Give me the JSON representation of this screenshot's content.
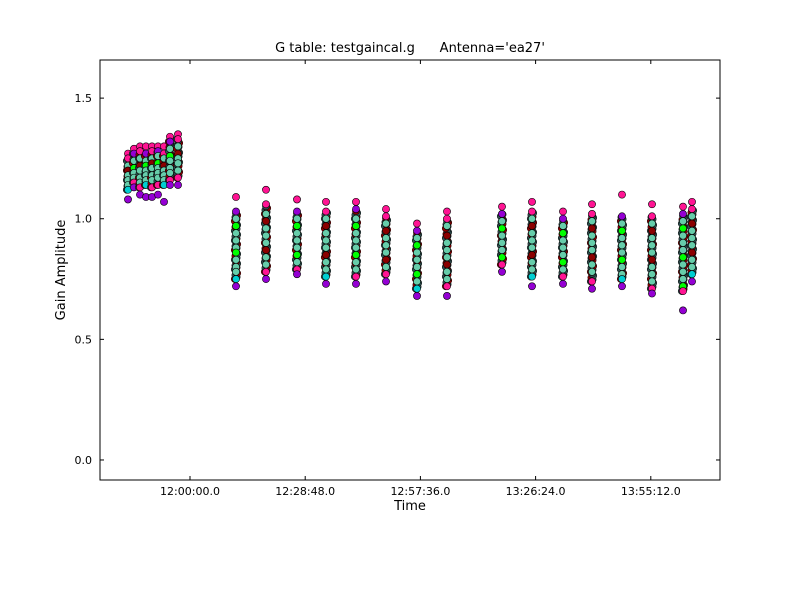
{
  "chart_data": {
    "type": "scatter",
    "title": "G table: testgaincal.g      Antenna='ea27'",
    "xlabel": "Time",
    "ylabel": "Gain Amplitude",
    "xlim": [
      "11:37:30",
      "14:12:30"
    ],
    "ylim": [
      -0.083,
      1.658
    ],
    "xticks": [
      "12:00:00.0",
      "12:28:48.0",
      "12:57:36.0",
      "13:26:24.0",
      "13:55:12.0"
    ],
    "xtick_values": [
      "12:00:00",
      "12:28:48",
      "12:57:36",
      "13:26:24",
      "13:55:12"
    ],
    "yticks": [
      "0.0",
      "0.5",
      "1.0",
      "1.5"
    ],
    "ytick_values": [
      0.0,
      0.5,
      1.0,
      1.5
    ],
    "grid": false,
    "palette": [
      "#66cdaa",
      "#2f4f4f",
      "#8b0000",
      "#ff1493",
      "#9400d3",
      "#00ff00",
      "#00ced1",
      "#b0c4de",
      "#adff2f",
      "#ff7f50"
    ],
    "scans": [
      {
        "time": "11:44:30",
        "amps": [
          1.27,
          1.25,
          1.22,
          1.2,
          1.18,
          1.16,
          1.14,
          1.12,
          1.08
        ]
      },
      {
        "time": "11:46:00",
        "amps": [
          1.29,
          1.27,
          1.24,
          1.21,
          1.19,
          1.17,
          1.15,
          1.13
        ]
      },
      {
        "time": "11:47:30",
        "amps": [
          1.3,
          1.28,
          1.25,
          1.22,
          1.2,
          1.17,
          1.15,
          1.13,
          1.1
        ]
      },
      {
        "time": "11:49:00",
        "amps": [
          1.3,
          1.27,
          1.24,
          1.22,
          1.2,
          1.18,
          1.16,
          1.14,
          1.09
        ]
      },
      {
        "time": "11:50:30",
        "amps": [
          1.3,
          1.28,
          1.25,
          1.23,
          1.21,
          1.18,
          1.16,
          1.13,
          1.09
        ]
      },
      {
        "time": "11:52:00",
        "amps": [
          1.3,
          1.28,
          1.26,
          1.23,
          1.21,
          1.19,
          1.17,
          1.14,
          1.1
        ]
      },
      {
        "time": "11:53:30",
        "amps": [
          1.3,
          1.27,
          1.25,
          1.22,
          1.2,
          1.18,
          1.16,
          1.14,
          1.07
        ]
      },
      {
        "time": "11:55:00",
        "amps": [
          1.34,
          1.32,
          1.29,
          1.26,
          1.24,
          1.21,
          1.19,
          1.16,
          1.14
        ]
      },
      {
        "time": "11:57:00",
        "amps": [
          1.35,
          1.33,
          1.3,
          1.27,
          1.25,
          1.23,
          1.2,
          1.17,
          1.14
        ]
      },
      {
        "time": "12:11:30",
        "amps": [
          1.09,
          1.03,
          1.0,
          0.97,
          0.94,
          0.91,
          0.88,
          0.86,
          0.83,
          0.8,
          0.78,
          0.75,
          0.72
        ]
      },
      {
        "time": "12:19:00",
        "amps": [
          1.12,
          1.06,
          1.02,
          0.99,
          0.96,
          0.93,
          0.9,
          0.87,
          0.84,
          0.81,
          0.78,
          0.75
        ]
      },
      {
        "time": "12:26:45",
        "amps": [
          1.08,
          1.03,
          1.0,
          0.97,
          0.94,
          0.91,
          0.88,
          0.85,
          0.82,
          0.79,
          0.77
        ]
      },
      {
        "time": "12:34:00",
        "amps": [
          1.07,
          1.03,
          1.0,
          0.97,
          0.94,
          0.91,
          0.88,
          0.85,
          0.82,
          0.79,
          0.76,
          0.73
        ]
      },
      {
        "time": "12:41:30",
        "amps": [
          1.07,
          1.04,
          1.0,
          0.97,
          0.94,
          0.91,
          0.88,
          0.85,
          0.82,
          0.79,
          0.76,
          0.73
        ]
      },
      {
        "time": "12:49:00",
        "amps": [
          1.04,
          1.01,
          0.98,
          0.95,
          0.92,
          0.89,
          0.86,
          0.83,
          0.8,
          0.77,
          0.74
        ]
      },
      {
        "time": "12:56:45",
        "amps": [
          0.98,
          0.95,
          0.92,
          0.89,
          0.86,
          0.83,
          0.8,
          0.77,
          0.74,
          0.71,
          0.68
        ]
      },
      {
        "time": "13:04:15",
        "amps": [
          1.03,
          1.0,
          0.97,
          0.93,
          0.9,
          0.87,
          0.84,
          0.81,
          0.78,
          0.75,
          0.72,
          0.68
        ]
      },
      {
        "time": "13:18:00",
        "amps": [
          1.05,
          1.02,
          0.99,
          0.96,
          0.93,
          0.9,
          0.87,
          0.84,
          0.81,
          0.78
        ]
      },
      {
        "time": "13:25:30",
        "amps": [
          1.07,
          1.03,
          1.0,
          0.97,
          0.94,
          0.91,
          0.88,
          0.85,
          0.82,
          0.79,
          0.76,
          0.72
        ]
      },
      {
        "time": "13:33:15",
        "amps": [
          1.03,
          1.0,
          0.97,
          0.94,
          0.91,
          0.88,
          0.85,
          0.82,
          0.79,
          0.76,
          0.73
        ]
      },
      {
        "time": "13:40:30",
        "amps": [
          1.06,
          1.02,
          0.99,
          0.96,
          0.93,
          0.9,
          0.87,
          0.84,
          0.81,
          0.78,
          0.74,
          0.71
        ]
      },
      {
        "time": "13:48:00",
        "amps": [
          1.1,
          1.01,
          0.98,
          0.95,
          0.92,
          0.89,
          0.86,
          0.83,
          0.8,
          0.77,
          0.75,
          0.72
        ]
      },
      {
        "time": "13:55:30",
        "amps": [
          1.06,
          1.01,
          0.98,
          0.95,
          0.92,
          0.89,
          0.86,
          0.83,
          0.8,
          0.77,
          0.74,
          0.71,
          0.69
        ]
      },
      {
        "time": "14:03:15",
        "amps": [
          1.05,
          1.02,
          0.99,
          0.96,
          0.93,
          0.9,
          0.87,
          0.84,
          0.81,
          0.78,
          0.75,
          0.72,
          0.7,
          0.62
        ]
      },
      {
        "time": "14:05:30",
        "amps": [
          1.07,
          1.04,
          1.01,
          0.98,
          0.95,
          0.92,
          0.89,
          0.86,
          0.83,
          0.8,
          0.77,
          0.74
        ]
      }
    ]
  }
}
